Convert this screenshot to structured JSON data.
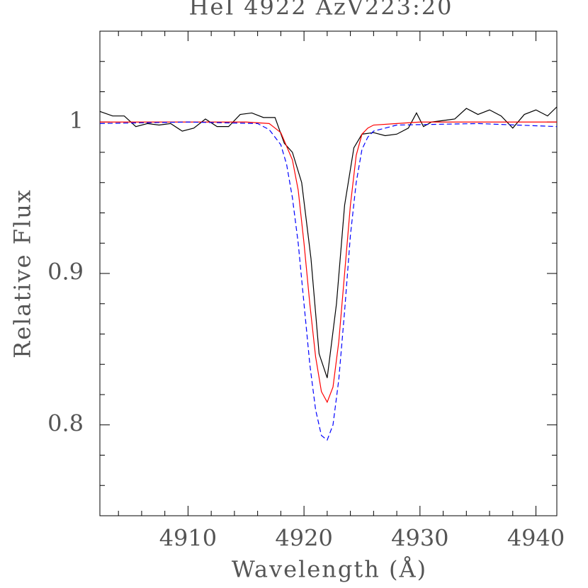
{
  "chart_data": {
    "type": "line",
    "title": "HeI 4922 AzV223:20",
    "xlabel": "Wavelength (Å)",
    "ylabel": "Relative Flux",
    "xlim": [
      4902.4,
      4941.8
    ],
    "ylim": [
      0.74,
      1.06
    ],
    "xticks": [
      4910,
      4920,
      4930,
      4940
    ],
    "yticks": [
      0.8,
      0.9,
      1
    ],
    "xminorticks": [
      4904,
      4906,
      4908,
      4912,
      4914,
      4916,
      4918,
      4922,
      4924,
      4926,
      4928,
      4932,
      4934,
      4936,
      4938
    ],
    "yminorticks": [
      0.74,
      0.76,
      0.78,
      0.82,
      0.84,
      0.86,
      0.88,
      0.92,
      0.94,
      0.96,
      0.98,
      1.02,
      1.04,
      1.06
    ],
    "series": [
      {
        "color": "#000000",
        "dashed": false,
        "x": [
          4902.4,
          4903.5,
          4904.5,
          4905.5,
          4906.5,
          4907.5,
          4908.5,
          4909.5,
          4910.5,
          4911.5,
          4912.5,
          4913.5,
          4914.5,
          4915.5,
          4916.5,
          4917.5,
          4918.3,
          4919,
          4919.8,
          4920.6,
          4921.3,
          4922,
          4922.8,
          4923.5,
          4924.3,
          4925,
          4926,
          4927,
          4928,
          4929,
          4929.7,
          4930.3,
          4931,
          4932,
          4933,
          4934,
          4935,
          4936,
          4937,
          4938,
          4939,
          4940,
          4941,
          4941.8
        ],
        "values": [
          1.007,
          1.004,
          1.004,
          0.997,
          0.999,
          0.998,
          0.999,
          0.994,
          0.996,
          1.002,
          0.997,
          0.997,
          1.005,
          1.006,
          1.003,
          1.003,
          0.986,
          0.98,
          0.96,
          0.91,
          0.847,
          0.831,
          0.88,
          0.945,
          0.983,
          0.992,
          0.993,
          0.991,
          0.992,
          0.996,
          1.006,
          0.997,
          1.0,
          1.001,
          1.002,
          1.009,
          1.005,
          1.008,
          1.004,
          0.996,
          1.005,
          1.008,
          1.004,
          1.01
        ]
      },
      {
        "color": "#ff0000",
        "dashed": false,
        "x": [
          4902.4,
          4910,
          4915,
          4917,
          4918,
          4919,
          4919.5,
          4920,
          4920.5,
          4921,
          4921.5,
          4922,
          4922.5,
          4923,
          4923.5,
          4924,
          4924.5,
          4925,
          4925.5,
          4926,
          4928,
          4930,
          4941.8
        ],
        "values": [
          1.0,
          1.0,
          1.0,
          0.999,
          0.993,
          0.975,
          0.955,
          0.92,
          0.88,
          0.845,
          0.822,
          0.815,
          0.825,
          0.855,
          0.9,
          0.945,
          0.978,
          0.992,
          0.996,
          0.998,
          0.999,
          1.0,
          1.0
        ]
      },
      {
        "color": "#0000ff",
        "dashed": true,
        "x": [
          4902.4,
          4910,
          4916,
          4917,
          4918,
          4918.5,
          4919,
          4919.5,
          4920,
          4920.5,
          4921,
          4921.5,
          4922,
          4922.5,
          4923,
          4923.5,
          4924,
          4924.5,
          4925,
          4925.5,
          4926,
          4928,
          4935,
          4941.8
        ],
        "values": [
          0.999,
          1.0,
          0.999,
          0.995,
          0.985,
          0.972,
          0.95,
          0.92,
          0.88,
          0.84,
          0.81,
          0.793,
          0.79,
          0.8,
          0.83,
          0.875,
          0.925,
          0.96,
          0.982,
          0.99,
          0.994,
          0.998,
          0.999,
          0.997
        ]
      }
    ]
  }
}
